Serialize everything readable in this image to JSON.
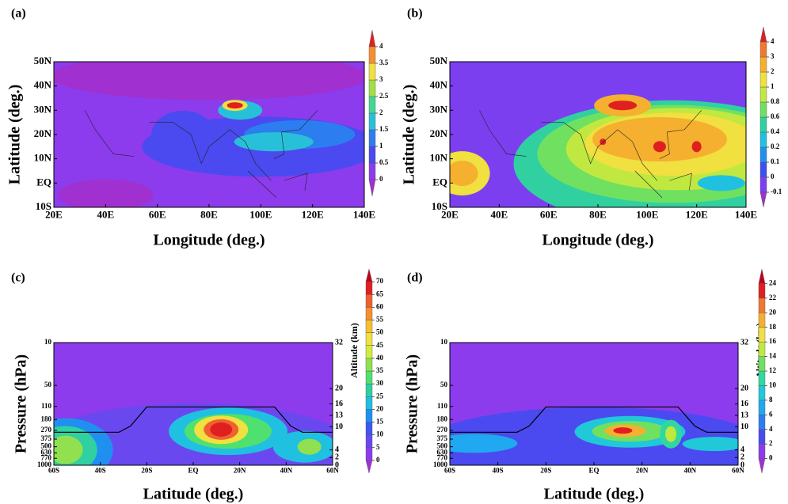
{
  "chart_data": [
    {
      "type": "contour",
      "label": "(a)",
      "xlabel": "Longitude (deg.)",
      "ylabel": "Latitude (deg.)",
      "xlim": [
        20,
        140
      ],
      "xticks": [
        {
          "value": 20,
          "label": "20E"
        },
        {
          "value": 40,
          "label": "40E"
        },
        {
          "value": 60,
          "label": "60E"
        },
        {
          "value": 80,
          "label": "80E"
        },
        {
          "value": 100,
          "label": "100E"
        },
        {
          "value": 120,
          "label": "120E"
        },
        {
          "value": 140,
          "label": "140E"
        }
      ],
      "ylim": [
        -10,
        50
      ],
      "yticks": [
        {
          "value": -10,
          "label": "10S"
        },
        {
          "value": 0,
          "label": "EQ"
        },
        {
          "value": 10,
          "label": "10N"
        },
        {
          "value": 20,
          "label": "20N"
        },
        {
          "value": 30,
          "label": "30N"
        },
        {
          "value": 40,
          "label": "40N"
        },
        {
          "value": 50,
          "label": "50N"
        }
      ],
      "colorbar": {
        "ticks": [
          0,
          0.5,
          1,
          1.5,
          2,
          2.5,
          3,
          3.5,
          4
        ],
        "colors": [
          "#a030d0",
          "#8c3cec",
          "#4a4af0",
          "#2c7ef0",
          "#28c0d8",
          "#40d890",
          "#a0e040",
          "#f0e040",
          "#f59030",
          "#e02020"
        ]
      }
    },
    {
      "type": "contour",
      "label": "(b)",
      "xlabel": "Longitude (deg.)",
      "ylabel": "Latitude (deg.)",
      "xlim": [
        20,
        140
      ],
      "xticks": [
        {
          "value": 20,
          "label": "20E"
        },
        {
          "value": 40,
          "label": "40E"
        },
        {
          "value": 60,
          "label": "60E"
        },
        {
          "value": 80,
          "label": "80E"
        },
        {
          "value": 100,
          "label": "100E"
        },
        {
          "value": 120,
          "label": "120E"
        },
        {
          "value": 140,
          "label": "140E"
        }
      ],
      "ylim": [
        -10,
        50
      ],
      "yticks": [
        {
          "value": -10,
          "label": "10S"
        },
        {
          "value": 0,
          "label": "EQ"
        },
        {
          "value": 10,
          "label": "10N"
        },
        {
          "value": 20,
          "label": "20N"
        },
        {
          "value": 30,
          "label": "30N"
        },
        {
          "value": 40,
          "label": "40N"
        },
        {
          "value": 50,
          "label": "50N"
        }
      ],
      "colorbar": {
        "ticks": [
          -0.1,
          0,
          0.1,
          0.2,
          0.4,
          0.6,
          0.8,
          1,
          2,
          3,
          4
        ],
        "colors": [
          "#a030d0",
          "#7b3ff0",
          "#3c50f0",
          "#2090f0",
          "#20c0e0",
          "#30d0a0",
          "#70e060",
          "#c0e840",
          "#f0e040",
          "#f5b030",
          "#f07830",
          "#e02020"
        ]
      }
    },
    {
      "type": "contour",
      "label": "(c)",
      "xlabel": "Latitude (deg.)",
      "ylabel": "Pressure (hPa)",
      "y2label": "Altitude (km)",
      "xlim": [
        -60,
        60
      ],
      "xticks": [
        {
          "value": -60,
          "label": "60S"
        },
        {
          "value": -40,
          "label": "40S"
        },
        {
          "value": -20,
          "label": "20S"
        },
        {
          "value": 0,
          "label": "EQ"
        },
        {
          "value": 20,
          "label": "20N"
        },
        {
          "value": 40,
          "label": "40N"
        },
        {
          "value": 60,
          "label": "60N"
        }
      ],
      "ylim": [
        1000,
        10
      ],
      "yscale": "log",
      "yticks": [
        10,
        50,
        110,
        180,
        270,
        375,
        500,
        630,
        770,
        1000
      ],
      "y2lim": [
        0,
        32
      ],
      "y2ticks": [
        32,
        20,
        16,
        13,
        10,
        4,
        2,
        0
      ],
      "colorbar": {
        "ticks": [
          0,
          5,
          10,
          15,
          20,
          25,
          30,
          35,
          40,
          45,
          50,
          55,
          60,
          65,
          70
        ],
        "colors": [
          "#a030d0",
          "#8c3cec",
          "#6a48f0",
          "#3c58f0",
          "#2090f0",
          "#20c0e0",
          "#30d0a0",
          "#50e070",
          "#90e050",
          "#d0ec40",
          "#f0e040",
          "#f5c030",
          "#f59030",
          "#f06030",
          "#e02020",
          "#c00020"
        ]
      }
    },
    {
      "type": "contour",
      "label": "(d)",
      "xlabel": "Latitude (deg.)",
      "ylabel": "Pressure (hPa)",
      "y2label": "Altitude (km)",
      "xlim": [
        -60,
        60
      ],
      "xticks": [
        {
          "value": -60,
          "label": "60S"
        },
        {
          "value": -40,
          "label": "40S"
        },
        {
          "value": -20,
          "label": "20S"
        },
        {
          "value": 0,
          "label": "EQ"
        },
        {
          "value": 20,
          "label": "20N"
        },
        {
          "value": 40,
          "label": "40N"
        },
        {
          "value": 60,
          "label": "60N"
        }
      ],
      "ylim": [
        1000,
        10
      ],
      "yscale": "log",
      "yticks": [
        10,
        50,
        110,
        180,
        270,
        375,
        500,
        630,
        770,
        1000
      ],
      "y2lim": [
        0,
        32
      ],
      "y2ticks": [
        32,
        20,
        16,
        13,
        10,
        4,
        2,
        0
      ],
      "colorbar": {
        "ticks": [
          0,
          2,
          4,
          6,
          8,
          10,
          12,
          14,
          16,
          18,
          20,
          22,
          24
        ],
        "colors": [
          "#a030d0",
          "#8c3cec",
          "#4a4af0",
          "#2c7ef0",
          "#20a8f0",
          "#20c8d8",
          "#30d8a0",
          "#70e060",
          "#c0e840",
          "#f0e040",
          "#f5b030",
          "#f07830",
          "#e02020",
          "#c00020"
        ]
      }
    }
  ]
}
